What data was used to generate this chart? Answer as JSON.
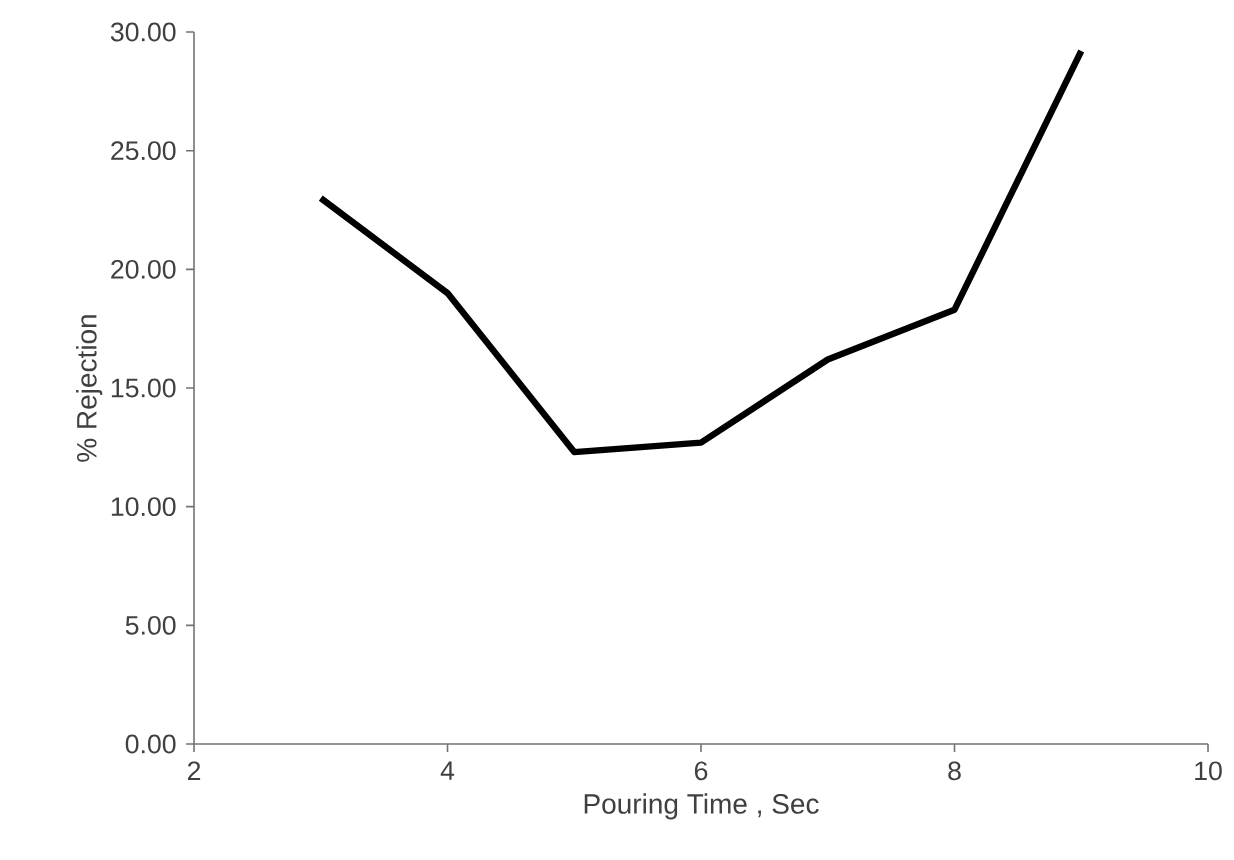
{
  "chart_data": {
    "type": "line",
    "xlabel": "Pouring Time , Sec",
    "ylabel": "% Rejection",
    "x": [
      3,
      4,
      5,
      6,
      7,
      8,
      9
    ],
    "series": [
      {
        "color": "#000000",
        "values": [
          23.0,
          19.0,
          12.3,
          12.7,
          16.2,
          18.3,
          29.2
        ]
      }
    ],
    "xlim": [
      2,
      10
    ],
    "xticks": [
      2,
      4,
      6,
      8,
      10
    ],
    "ylim": [
      0,
      30
    ],
    "yticks": [
      {
        "value": 0,
        "label": "0.00"
      },
      {
        "value": 5,
        "label": "5.00"
      },
      {
        "value": 10,
        "label": "10.00"
      },
      {
        "value": 15,
        "label": "15.00"
      },
      {
        "value": 20,
        "label": "20.00"
      },
      {
        "value": 25,
        "label": "25.00"
      },
      {
        "value": 30,
        "label": "30.00"
      }
    ],
    "grid": false
  }
}
